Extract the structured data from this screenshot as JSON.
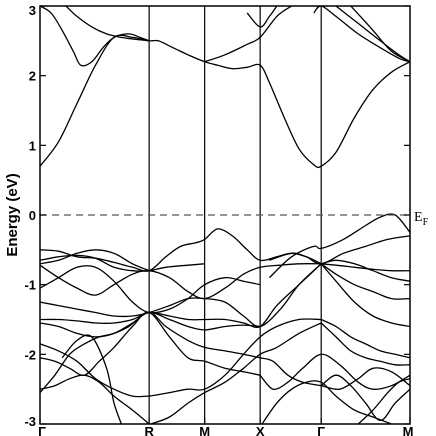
{
  "chart_data": {
    "type": "line",
    "title": "",
    "xlabel": "",
    "ylabel": "Energy (eV)",
    "ylim": [
      -3,
      3
    ],
    "yticks": [
      -3,
      -2,
      -1,
      0,
      1,
      2,
      3
    ],
    "grid": false,
    "legend": "none",
    "k_path": [
      {
        "label": "Γ",
        "k": 0.0
      },
      {
        "label": "R",
        "k": 0.295
      },
      {
        "label": "M",
        "k": 0.445
      },
      {
        "label": "X",
        "k": 0.595
      },
      {
        "label": "Γ",
        "k": 0.76
      },
      {
        "label": "M",
        "k": 1.0
      }
    ],
    "fermi_level": {
      "energy": 0,
      "label": "E",
      "label_sub": "F",
      "style": "dashed"
    },
    "band_color": "#000000",
    "series": [
      {
        "x": [
          0,
          0.05,
          0.1,
          0.15,
          0.2,
          0.25,
          0.295,
          0.32,
          0.36,
          0.4,
          0.445,
          0.48,
          0.52,
          0.56,
          0.595,
          0.62,
          0.66,
          0.7,
          0.74,
          0.76,
          0.8,
          0.85,
          0.9,
          0.95,
          1.0
        ],
        "y": [
          0.7,
          1.05,
          1.6,
          2.15,
          2.55,
          2.55,
          2.5,
          2.5,
          2.4,
          2.3,
          2.2,
          2.15,
          2.1,
          2.12,
          2.15,
          1.9,
          1.4,
          0.95,
          0.72,
          0.7,
          0.9,
          1.4,
          1.8,
          2.05,
          2.2
        ]
      },
      {
        "x": [
          0,
          0.03,
          0.06,
          0.09,
          0.11,
          0.14,
          0.17,
          0.2,
          0.24,
          0.27,
          0.295
        ],
        "y": [
          3.0,
          2.9,
          2.65,
          2.35,
          2.15,
          2.2,
          2.4,
          2.55,
          2.6,
          2.55,
          2.5
        ]
      },
      {
        "x": [
          0.07,
          0.1,
          0.14,
          0.18,
          0.22,
          0.26,
          0.295
        ],
        "y": [
          3.0,
          2.85,
          2.7,
          2.6,
          2.55,
          2.52,
          2.5
        ]
      },
      {
        "x": [
          0.445,
          0.5,
          0.56,
          0.595,
          0.64,
          0.68
        ],
        "y": [
          2.2,
          2.3,
          2.45,
          2.55,
          2.85,
          3.0
        ]
      },
      {
        "x": [
          0.56,
          0.595,
          0.62,
          0.64
        ],
        "y": [
          2.9,
          2.7,
          2.85,
          3.0
        ]
      },
      {
        "x": [
          0.74,
          0.76,
          0.8,
          0.86,
          0.92,
          0.97,
          1.0
        ],
        "y": [
          2.9,
          3.0,
          2.85,
          2.6,
          2.4,
          2.25,
          2.2
        ]
      },
      {
        "x": [
          0.8,
          0.86,
          0.92,
          0.97,
          1.0
        ],
        "y": [
          3.0,
          2.75,
          2.5,
          2.3,
          2.2
        ]
      },
      {
        "x": [
          0.84,
          0.9,
          0.95,
          1.0
        ],
        "y": [
          3.0,
          2.65,
          2.35,
          2.2
        ]
      },
      {
        "x": [
          0.62,
          0.68,
          0.74,
          0.76,
          0.82,
          0.88,
          0.92,
          0.96,
          1.0
        ],
        "y": [
          -0.9,
          -0.6,
          -0.45,
          -0.48,
          -0.35,
          -0.15,
          -0.03,
          0.0,
          -0.25
        ]
      },
      {
        "x": [
          0.62,
          0.68,
          0.72,
          0.76,
          0.82,
          0.88,
          0.94,
          1.0
        ],
        "y": [
          -0.65,
          -0.55,
          -0.6,
          -0.7,
          -0.55,
          -0.45,
          -0.35,
          -0.3
        ]
      },
      {
        "x": [
          0,
          0.05,
          0.1,
          0.15,
          0.2,
          0.25,
          0.295,
          0.34,
          0.38,
          0.42,
          0.445,
          0.48,
          0.52,
          0.56,
          0.595,
          0.64,
          0.68,
          0.72,
          0.76
        ],
        "y": [
          -0.5,
          -0.52,
          -0.6,
          -0.62,
          -0.68,
          -0.75,
          -0.8,
          -0.6,
          -0.45,
          -0.4,
          -0.35,
          -0.2,
          -0.3,
          -0.5,
          -0.65,
          -0.6,
          -0.55,
          -0.6,
          -0.7
        ]
      },
      {
        "x": [
          0,
          0.05,
          0.1,
          0.15,
          0.2,
          0.25,
          0.295
        ],
        "y": [
          -0.7,
          -0.65,
          -0.55,
          -0.5,
          -0.55,
          -0.7,
          -0.8
        ]
      },
      {
        "x": [
          0,
          0.05,
          0.1,
          0.15,
          0.2,
          0.25,
          0.295,
          0.34,
          0.4,
          0.445
        ],
        "y": [
          -0.65,
          -0.6,
          -0.58,
          -0.62,
          -0.75,
          -0.8,
          -0.8,
          -0.75,
          -0.72,
          -0.7
        ]
      },
      {
        "x": [
          0,
          0.05,
          0.1,
          0.15,
          0.2,
          0.25,
          0.295,
          0.35,
          0.4,
          0.445,
          0.5,
          0.55,
          0.595,
          0.65,
          0.7,
          0.76
        ],
        "y": [
          -0.72,
          -0.9,
          -1.05,
          -1.15,
          -1.0,
          -0.85,
          -0.8,
          -0.9,
          -1.1,
          -1.2,
          -1.05,
          -0.85,
          -0.75,
          -0.72,
          -0.7,
          -0.7
        ]
      },
      {
        "x": [
          0,
          0.05,
          0.1,
          0.15,
          0.2,
          0.25,
          0.295,
          0.35,
          0.4,
          0.445,
          0.5,
          0.55,
          0.595
        ],
        "y": [
          -1.05,
          -0.9,
          -0.75,
          -0.75,
          -0.95,
          -1.25,
          -1.4,
          -1.35,
          -1.2,
          -1.0,
          -0.9,
          -0.95,
          -1.0
        ]
      },
      {
        "x": [
          0,
          0.05,
          0.1,
          0.15,
          0.2,
          0.25,
          0.295,
          0.35,
          0.4,
          0.445,
          0.5,
          0.55,
          0.595,
          0.65,
          0.7,
          0.76
        ],
        "y": [
          -1.25,
          -1.3,
          -1.35,
          -1.4,
          -1.45,
          -1.45,
          -1.4,
          -1.3,
          -1.2,
          -1.2,
          -1.25,
          -1.45,
          -1.6,
          -1.35,
          -1.0,
          -0.7
        ]
      },
      {
        "x": [
          0,
          0.05,
          0.1,
          0.15,
          0.2,
          0.25,
          0.295,
          0.35,
          0.4,
          0.445,
          0.5,
          0.55,
          0.595,
          0.64,
          0.7,
          0.76
        ],
        "y": [
          -1.5,
          -1.5,
          -1.52,
          -1.55,
          -1.55,
          -1.5,
          -1.4,
          -1.45,
          -1.5,
          -1.5,
          -1.5,
          -1.55,
          -1.6,
          -1.3,
          -1.0,
          -0.7
        ]
      },
      {
        "x": [
          0,
          0.05,
          0.1,
          0.15,
          0.2,
          0.25,
          0.295,
          0.35,
          0.4,
          0.445,
          0.5,
          0.55,
          0.595
        ],
        "y": [
          -1.55,
          -1.6,
          -1.7,
          -1.75,
          -1.7,
          -1.55,
          -1.4,
          -1.5,
          -1.6,
          -1.65,
          -1.6,
          -1.58,
          -1.6
        ]
      },
      {
        "x": [
          0.76,
          0.8,
          0.85,
          0.9,
          0.95,
          1.0
        ],
        "y": [
          -0.7,
          -0.72,
          -0.75,
          -0.78,
          -0.8,
          -0.8
        ]
      },
      {
        "x": [
          0.76,
          0.8,
          0.85,
          0.9,
          0.95,
          1.0
        ],
        "y": [
          -0.7,
          -0.85,
          -1.0,
          -1.1,
          -1.2,
          -1.2
        ]
      },
      {
        "x": [
          0.76,
          0.8,
          0.85,
          0.9,
          0.95,
          1.0
        ],
        "y": [
          -0.7,
          -0.95,
          -1.25,
          -1.45,
          -1.55,
          -1.6
        ]
      },
      {
        "x": [
          0.76,
          0.8,
          0.85,
          0.9,
          0.95,
          1.0
        ],
        "y": [
          -0.7,
          -0.65,
          -0.7,
          -0.8,
          -0.9,
          -0.95
        ]
      },
      {
        "x": [
          0,
          0.04,
          0.08,
          0.12,
          0.16,
          0.2,
          0.24,
          0.295,
          0.34,
          0.4,
          0.445,
          0.5,
          0.55,
          0.595
        ],
        "y": [
          -2.55,
          -2.3,
          -2.0,
          -1.85,
          -1.75,
          -1.7,
          -1.6,
          -1.4,
          -1.6,
          -1.8,
          -1.9,
          -1.95,
          -2.0,
          -2.05
        ]
      },
      {
        "x": [
          0,
          0.04,
          0.08,
          0.12,
          0.16,
          0.2,
          0.25,
          0.295,
          0.35,
          0.4,
          0.445,
          0.5,
          0.55,
          0.595
        ],
        "y": [
          -2.05,
          -2.1,
          -2.2,
          -2.3,
          -2.1,
          -1.9,
          -1.6,
          -1.4,
          -1.75,
          -2.05,
          -2.1,
          -2.2,
          -2.25,
          -2.3
        ]
      },
      {
        "x": [
          0,
          0.04,
          0.08,
          0.12,
          0.16,
          0.2,
          0.25,
          0.295
        ],
        "y": [
          -2.5,
          -2.45,
          -2.35,
          -2.3,
          -2.4,
          -2.6,
          -2.8,
          -3.0
        ]
      },
      {
        "x": [
          0.06,
          0.1,
          0.14,
          0.18,
          0.2,
          0.22
        ],
        "y": [
          -2.05,
          -1.8,
          -1.75,
          -2.2,
          -2.7,
          -3.0
        ]
      },
      {
        "x": [
          0,
          0.05,
          0.1,
          0.15,
          0.2,
          0.25,
          0.295
        ],
        "y": [
          -1.85,
          -1.95,
          -2.1,
          -2.35,
          -2.5,
          -2.6,
          -2.6
        ]
      },
      {
        "x": [
          0.295,
          0.35,
          0.4,
          0.445,
          0.5,
          0.55,
          0.595,
          0.64,
          0.7,
          0.76
        ],
        "y": [
          -2.6,
          -2.55,
          -2.5,
          -2.5,
          -2.3,
          -2.0,
          -1.75,
          -1.6,
          -1.5,
          -1.5
        ]
      },
      {
        "x": [
          0.3,
          0.35,
          0.4,
          0.445,
          0.5,
          0.55,
          0.595,
          0.64,
          0.7,
          0.76
        ],
        "y": [
          -3.0,
          -2.9,
          -2.7,
          -2.55,
          -2.4,
          -2.2,
          -2.0,
          -1.9,
          -1.7,
          -1.55
        ]
      },
      {
        "x": [
          0.595,
          0.63,
          0.67,
          0.71,
          0.76,
          0.81,
          0.86,
          0.9,
          0.95,
          1.0
        ],
        "y": [
          -2.05,
          -2.1,
          -2.3,
          -2.4,
          -2.45,
          -2.5,
          -2.35,
          -2.2,
          -2.25,
          -2.45
        ]
      },
      {
        "x": [
          0.595,
          0.63,
          0.67,
          0.71,
          0.76,
          0.81,
          0.86,
          0.9,
          0.95,
          1.0
        ],
        "y": [
          -2.3,
          -2.5,
          -2.4,
          -2.2,
          -2.0,
          -2.15,
          -2.4,
          -2.5,
          -2.45,
          -2.3
        ]
      },
      {
        "x": [
          0.76,
          0.8,
          0.84,
          0.88,
          0.92,
          0.96,
          1.0
        ],
        "y": [
          -1.55,
          -1.75,
          -1.95,
          -2.05,
          -2.1,
          -2.15,
          -2.15
        ]
      },
      {
        "x": [
          0.76,
          0.8,
          0.84,
          0.88,
          0.92,
          0.96,
          1.0
        ],
        "y": [
          -1.5,
          -1.6,
          -1.75,
          -1.85,
          -1.95,
          -2.0,
          -2.05
        ]
      },
      {
        "x": [
          0.6,
          0.64,
          0.68,
          0.72,
          0.76,
          0.8,
          0.85,
          0.9,
          0.95
        ],
        "y": [
          -3.0,
          -2.7,
          -2.5,
          -2.4,
          -2.4,
          -2.6,
          -2.8,
          -2.9,
          -3.0
        ]
      },
      {
        "x": [
          0.76,
          0.8,
          0.84,
          0.88,
          0.92,
          0.96,
          1.0
        ],
        "y": [
          -2.45,
          -2.3,
          -2.45,
          -2.7,
          -2.95,
          -2.7,
          -2.5
        ]
      },
      {
        "x": [
          0.86,
          0.9,
          0.94,
          0.97,
          1.0
        ],
        "y": [
          -3.0,
          -2.8,
          -2.55,
          -2.4,
          -2.35
        ]
      }
    ]
  }
}
